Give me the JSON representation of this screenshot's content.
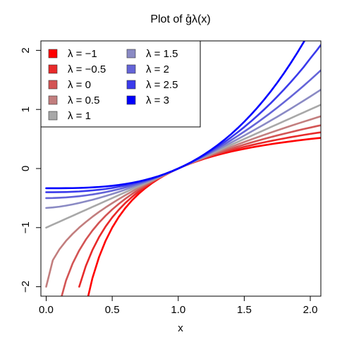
{
  "chart_data": {
    "type": "line",
    "title": "Plot of g̊λ(x)",
    "xlabel": "x",
    "ylabel": "",
    "xlim": [
      -0.04,
      2.08
    ],
    "ylim": [
      -2.16,
      2.16
    ],
    "x_ticks": [
      0.0,
      0.5,
      1.0,
      1.5,
      2.0
    ],
    "x_tick_labels": [
      "0.0",
      "0.5",
      "1.0",
      "1.5",
      "2.0"
    ],
    "y_ticks": [
      -2,
      -1,
      0,
      1,
      2
    ],
    "y_tick_labels": [
      "−2",
      "−1",
      "0",
      "1",
      "2"
    ],
    "legend_position": "top-left",
    "x": [
      0.0,
      0.05,
      0.1,
      0.15,
      0.2,
      0.25,
      0.3,
      0.35,
      0.4,
      0.45,
      0.5,
      0.55,
      0.6,
      0.65,
      0.7,
      0.75,
      0.8,
      0.85,
      0.9,
      0.95,
      1.0,
      1.05,
      1.1,
      1.15,
      1.2,
      1.25,
      1.3,
      1.35,
      1.4,
      1.45,
      1.5,
      1.55,
      1.6,
      1.65,
      1.7,
      1.75,
      1.8,
      1.85,
      1.9,
      1.95,
      2.0,
      2.05,
      2.08
    ],
    "series": [
      {
        "name": "λ = −1",
        "lambda": -1,
        "color": "#ff0000",
        "values": [
          null,
          null,
          null,
          null,
          null,
          null,
          -2.333,
          -1.857,
          -1.5,
          -1.222,
          -1.0,
          -0.818,
          -0.667,
          -0.538,
          -0.429,
          -0.333,
          -0.25,
          -0.176,
          -0.111,
          -0.053,
          0.0,
          0.048,
          0.091,
          0.13,
          0.167,
          0.2,
          0.231,
          0.259,
          0.286,
          0.31,
          0.333,
          0.355,
          0.375,
          0.394,
          0.412,
          0.429,
          0.444,
          0.459,
          0.474,
          0.487,
          0.5,
          0.512,
          0.519
        ]
      },
      {
        "name": "λ = −0.5",
        "lambda": -0.5,
        "color": "#e82a2a",
        "values": [
          null,
          null,
          null,
          null,
          null,
          -2.0,
          -1.651,
          -1.381,
          -1.162,
          -0.981,
          -0.828,
          -0.697,
          -0.582,
          -0.481,
          -0.39,
          -0.309,
          -0.236,
          -0.169,
          -0.108,
          -0.052,
          0.0,
          0.048,
          0.093,
          0.135,
          0.174,
          0.211,
          0.246,
          0.279,
          0.31,
          0.339,
          0.367,
          0.393,
          0.419,
          0.443,
          0.466,
          0.488,
          0.509,
          0.53,
          0.549,
          0.568,
          0.586,
          0.603,
          0.613
        ]
      },
      {
        "name": "λ = 0",
        "lambda": 0,
        "color": "#d35454",
        "values": [
          null,
          -2.996,
          -2.303,
          -1.897,
          -1.609,
          -1.386,
          -1.204,
          -1.05,
          -0.916,
          -0.799,
          -0.693,
          -0.598,
          -0.511,
          -0.431,
          -0.357,
          -0.288,
          -0.223,
          -0.163,
          -0.105,
          -0.051,
          0.0,
          0.049,
          0.095,
          0.14,
          0.182,
          0.223,
          0.262,
          0.3,
          0.336,
          0.372,
          0.405,
          0.438,
          0.47,
          0.501,
          0.531,
          0.56,
          0.588,
          0.615,
          0.642,
          0.668,
          0.693,
          0.718,
          0.732
        ]
      },
      {
        "name": "λ = 0.5",
        "lambda": 0.5,
        "color": "#c27e7e",
        "values": [
          -2.0,
          -1.553,
          -1.368,
          -1.225,
          -1.106,
          -1.0,
          -0.905,
          -0.817,
          -0.735,
          -0.658,
          -0.586,
          -0.517,
          -0.451,
          -0.388,
          -0.327,
          -0.268,
          -0.211,
          -0.156,
          -0.103,
          -0.051,
          0.0,
          0.049,
          0.098,
          0.145,
          0.191,
          0.236,
          0.28,
          0.324,
          0.366,
          0.408,
          0.449,
          0.49,
          0.53,
          0.569,
          0.608,
          0.646,
          0.683,
          0.72,
          0.757,
          0.793,
          0.828,
          0.864,
          0.884
        ]
      },
      {
        "name": "λ = 1",
        "lambda": 1,
        "color": "#a8a8a8",
        "values": [
          -1.0,
          -0.95,
          -0.9,
          -0.85,
          -0.8,
          -0.75,
          -0.7,
          -0.65,
          -0.6,
          -0.55,
          -0.5,
          -0.45,
          -0.4,
          -0.35,
          -0.3,
          -0.25,
          -0.2,
          -0.15,
          -0.1,
          -0.05,
          0.0,
          0.05,
          0.1,
          0.15,
          0.2,
          0.25,
          0.3,
          0.35,
          0.4,
          0.45,
          0.5,
          0.55,
          0.6,
          0.65,
          0.7,
          0.75,
          0.8,
          0.85,
          0.9,
          0.95,
          1.0,
          1.05,
          1.08
        ]
      },
      {
        "name": "λ = 1.5",
        "lambda": 1.5,
        "color": "#8a8ac4",
        "values": [
          -0.667,
          -0.659,
          -0.646,
          -0.628,
          -0.607,
          -0.583,
          -0.557,
          -0.529,
          -0.498,
          -0.465,
          -0.431,
          -0.395,
          -0.357,
          -0.317,
          -0.276,
          -0.234,
          -0.19,
          -0.144,
          -0.098,
          -0.049,
          0.0,
          0.05,
          0.102,
          0.155,
          0.21,
          0.266,
          0.322,
          0.38,
          0.438,
          0.497,
          0.558,
          0.62,
          0.683,
          0.746,
          0.811,
          0.876,
          0.943,
          1.01,
          1.079,
          1.149,
          1.219,
          1.291,
          1.334
        ]
      },
      {
        "name": "λ = 2",
        "lambda": 2,
        "color": "#6464d8",
        "values": [
          -0.5,
          -0.499,
          -0.495,
          -0.489,
          -0.48,
          -0.469,
          -0.455,
          -0.439,
          -0.42,
          -0.399,
          -0.375,
          -0.349,
          -0.32,
          -0.289,
          -0.255,
          -0.219,
          -0.18,
          -0.139,
          -0.095,
          -0.049,
          0.0,
          0.051,
          0.105,
          0.161,
          0.22,
          0.281,
          0.345,
          0.411,
          0.48,
          0.551,
          0.625,
          0.701,
          0.78,
          0.861,
          0.945,
          1.031,
          1.12,
          1.211,
          1.305,
          1.401,
          1.5,
          1.601,
          1.663
        ]
      },
      {
        "name": "λ = 2.5",
        "lambda": 2.5,
        "color": "#3a3aec",
        "values": [
          -0.4,
          -0.4,
          -0.399,
          -0.397,
          -0.393,
          -0.388,
          -0.38,
          -0.37,
          -0.359,
          -0.346,
          -0.329,
          -0.309,
          -0.287,
          -0.261,
          -0.235,
          -0.205,
          -0.171,
          -0.133,
          -0.092,
          -0.048,
          0.0,
          0.052,
          0.107,
          0.167,
          0.231,
          0.299,
          0.371,
          0.447,
          0.528,
          0.613,
          0.702,
          0.796,
          0.895,
          0.998,
          1.105,
          1.218,
          1.335,
          1.458,
          1.585,
          1.718,
          1.863,
          2.003,
          2.091
        ]
      },
      {
        "name": "λ = 3",
        "lambda": 3,
        "color": "#0000ff",
        "values": [
          -0.333,
          -0.333,
          -0.333,
          -0.332,
          -0.331,
          -0.328,
          -0.324,
          -0.319,
          -0.312,
          -0.303,
          -0.292,
          -0.278,
          -0.261,
          -0.242,
          -0.219,
          -0.193,
          -0.163,
          -0.129,
          -0.09,
          -0.048,
          0.0,
          0.053,
          0.11,
          0.174,
          0.243,
          0.318,
          0.399,
          0.487,
          0.581,
          0.683,
          0.792,
          0.908,
          1.032,
          1.164,
          1.304,
          1.453,
          1.611,
          1.778,
          1.953,
          2.138,
          2.333,
          null,
          null
        ]
      }
    ]
  }
}
